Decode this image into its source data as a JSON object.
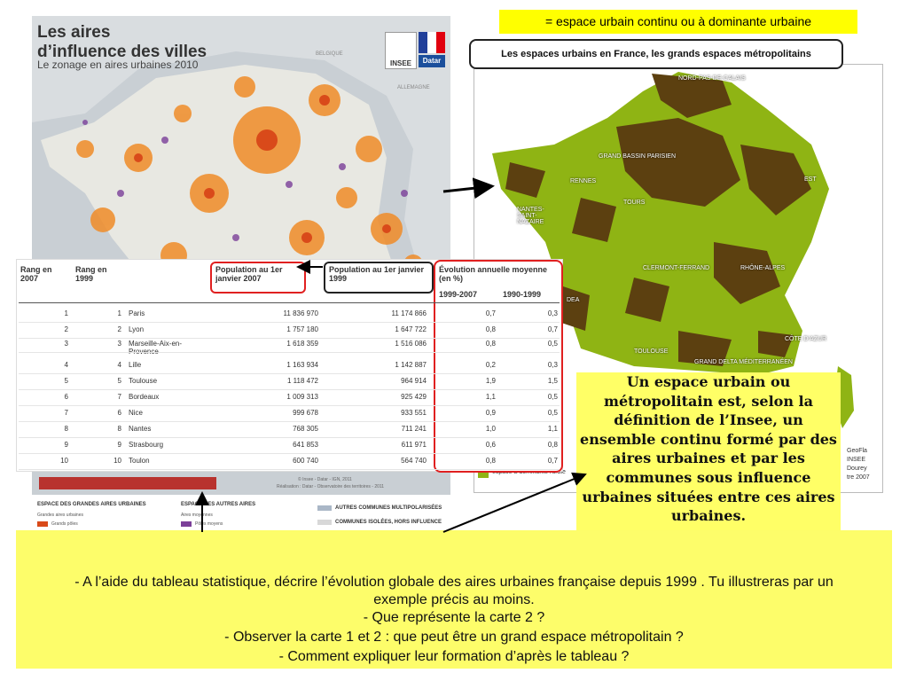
{
  "top_box": {
    "text": "= espace urbain continu ou à dominante urbaine"
  },
  "map1": {
    "title_line1": "Les aires",
    "title_line2": "d’influence des villes",
    "subtitle": "Le zonage en aires urbaines 2010",
    "logo_insee": "INSEE",
    "logo_datar": "Datar",
    "country_belgique": "BELGIQUE",
    "country_allemagne": "ALLEMAGNE",
    "source": "© Insee - Datar - IGN, 2011",
    "realisation": "Réalisation : Datar - Observatoire des territoires - 2011",
    "legend": {
      "col1_title": "ESPACE DES GRANDES AIRES URBAINES",
      "col1_sub": "Grandes aires urbaines",
      "col1_item": "Grands pôles",
      "col2_title": "ESPACE DES AUTRES AIRES",
      "col2_sub": "Aires moyennes",
      "col2_item": "Pôles moyens",
      "col3_item1": "AUTRES COMMUNES MULTIPOLARISÉES",
      "col3_item2": "COMMUNES ISOLÉES, HORS INFLUENCE"
    }
  },
  "map2": {
    "title": "Les espaces urbains en France, les grands espaces métropolitains",
    "labels": {
      "nord": "NORD-PAS-DE-CALAIS",
      "paris": "GRAND BASSIN PARISIEN",
      "rennes": "RENNES",
      "est": "EST",
      "nantes": "NANTES-SAINT-NAZAIRE",
      "tours": "TOURS",
      "clermont": "CLERMONT-FERRAND",
      "rhone": "RHÔNE-ALPES",
      "cote": "CÔTE D’AZUR",
      "toulouse": "TOULOUSE",
      "delta": "GRAND DELTA MÉDITERRANÉEN",
      "dea": "DEA"
    },
    "legend_item": "espace à dominante rurale",
    "source_lines": [
      "GeoFla",
      "INSEE",
      "Dourey",
      "tre 2007"
    ]
  },
  "table": {
    "headers": {
      "rang2007": "Rang en 2007",
      "rang1999": "Rang en 1999",
      "pop2007": "Population au 1er janvier 2007",
      "pop1999": "Population au 1er janvier 1999",
      "evolution": "Évolution annuelle moyenne (en %)",
      "p1": "1999-2007",
      "p2": "1990-1999"
    },
    "rows": [
      {
        "r07": "1",
        "r99": "1",
        "city": "Paris",
        "pop07": "11 836 970",
        "pop99": "11 174 866",
        "e1": "0,7",
        "e2": "0,3"
      },
      {
        "r07": "2",
        "r99": "2",
        "city": "Lyon",
        "pop07": "1 757 180",
        "pop99": "1 647 722",
        "e1": "0,8",
        "e2": "0,7"
      },
      {
        "r07": "3",
        "r99": "3",
        "city": "Marseille-Aix-en-Provence",
        "pop07": "1 618 359",
        "pop99": "1 516 086",
        "e1": "0,8",
        "e2": "0,5"
      },
      {
        "r07": "4",
        "r99": "4",
        "city": "Lille",
        "pop07": "1 163 934",
        "pop99": "1 142 887",
        "e1": "0,2",
        "e2": "0,3"
      },
      {
        "r07": "5",
        "r99": "5",
        "city": "Toulouse",
        "pop07": "1 118 472",
        "pop99": "964 914",
        "e1": "1,9",
        "e2": "1,5"
      },
      {
        "r07": "6",
        "r99": "7",
        "city": "Bordeaux",
        "pop07": "1 009 313",
        "pop99": "925 429",
        "e1": "1,1",
        "e2": "0,5"
      },
      {
        "r07": "7",
        "r99": "6",
        "city": "Nice",
        "pop07": "999 678",
        "pop99": "933 551",
        "e1": "0,9",
        "e2": "0,5"
      },
      {
        "r07": "8",
        "r99": "8",
        "city": "Nantes",
        "pop07": "768 305",
        "pop99": "711 241",
        "e1": "1,0",
        "e2": "1,1"
      },
      {
        "r07": "9",
        "r99": "9",
        "city": "Strasbourg",
        "pop07": "641 853",
        "pop99": "611 971",
        "e1": "0,6",
        "e2": "0,8"
      },
      {
        "r07": "10",
        "r99": "10",
        "city": "Toulon",
        "pop07": "600 740",
        "pop99": "564 740",
        "e1": "0,8",
        "e2": "0,7"
      }
    ]
  },
  "definition": {
    "text": "Un espace urbain ou métropolitain  est, selon la définition de l’Insee, un ensemble continu formé par des aires urbaines et par les communes sous influence urbaines situées entre ces aires urbaines."
  },
  "questions": {
    "q1a": "- A l’aide du tableau statistique, décrire l’évolution  globale des aires urbaines française depuis 1999 . Tu illustreras par un",
    "q1b": "exemple précis au moins.",
    "q2": "- Que représente la carte 2 ?",
    "q3": "- Observer la carte 1 et 2 : que peut être un grand espace métropolitain  ?",
    "q4": "- Comment expliquer leur formation d’après le tableau ?"
  },
  "colors": {
    "yellow_box": "#ffff00",
    "definition_bg": "#ffff66",
    "questions_bg": "#fdfd6a",
    "highlight_red": "#e02020",
    "map_green": "#8fb414",
    "map_brown": "#5c4010",
    "orange": "#f08c28"
  }
}
